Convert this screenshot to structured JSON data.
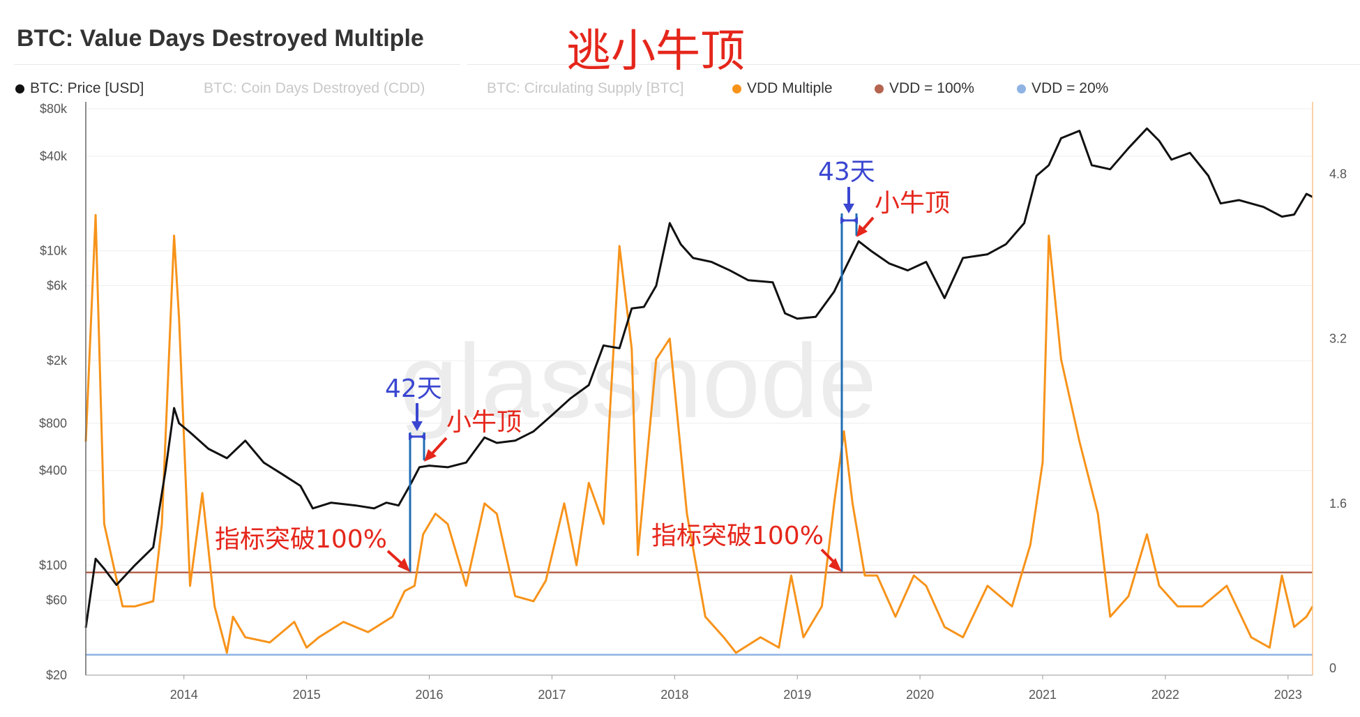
{
  "title": "BTC: Value Days Destroyed Multiple",
  "overlay_title": "逃小牛顶",
  "watermark": "glassnode",
  "legend": [
    {
      "label": "BTC: Price [USD]",
      "color": "#111111",
      "active": true
    },
    {
      "label": "BTC: Coin Days Destroyed (CDD)",
      "color": "#cccccc",
      "active": false
    },
    {
      "label": "BTC: Circulating Supply [BTC]",
      "color": "#cccccc",
      "active": false
    },
    {
      "label": "VDD Multiple",
      "color": "#f7931a",
      "active": true
    },
    {
      "label": "VDD = 100%",
      "color": "#b5644f",
      "active": true
    },
    {
      "label": "VDD = 20%",
      "color": "#8fb3e3",
      "active": true
    }
  ],
  "annotations": {
    "cycle1_days": "42天",
    "cycle1_top": "小牛顶",
    "cycle1_break": "指标突破100%",
    "cycle2_days": "43天",
    "cycle2_top": "小牛顶",
    "cycle2_break": "指标突破100%"
  },
  "chart_data": {
    "type": "line",
    "title": "BTC: Value Days Destroyed Multiple",
    "x_ticks": [
      "2014",
      "2015",
      "2016",
      "2017",
      "2018",
      "2019",
      "2020",
      "2021",
      "2022",
      "2023"
    ],
    "x_range": [
      2013.2,
      2023.2
    ],
    "y_left": {
      "scale": "log",
      "ticks": [
        "$20",
        "$60",
        "$100",
        "$400",
        "$800",
        "$2k",
        "$6k",
        "$10k",
        "$40k",
        "$80k"
      ],
      "tick_values": [
        20,
        60,
        100,
        400,
        800,
        2000,
        6000,
        10000,
        40000,
        80000
      ]
    },
    "y_right": {
      "scale": "linear",
      "ticks": [
        "0",
        "1.6",
        "3.2",
        "4.8"
      ],
      "tick_values": [
        0,
        1.6,
        3.2,
        4.8
      ],
      "range": [
        0,
        5.5
      ]
    },
    "reference_lines": [
      {
        "name": "VDD = 100%",
        "value": 0.93,
        "color": "#b5644f"
      },
      {
        "name": "VDD = 20%",
        "value": 0.13,
        "color": "#8fb3e3"
      }
    ],
    "series": [
      {
        "name": "BTC: Price [USD]",
        "axis": "left",
        "color": "#111111",
        "x": [
          2013.2,
          2013.28,
          2013.35,
          2013.45,
          2013.6,
          2013.75,
          2013.85,
          2013.92,
          2013.96,
          2014.05,
          2014.2,
          2014.35,
          2014.5,
          2014.65,
          2014.8,
          2014.95,
          2015.05,
          2015.2,
          2015.4,
          2015.55,
          2015.65,
          2015.75,
          2015.85,
          2015.92,
          2016.0,
          2016.15,
          2016.3,
          2016.45,
          2016.55,
          2016.7,
          2016.85,
          2017.0,
          2017.15,
          2017.3,
          2017.42,
          2017.55,
          2017.65,
          2017.75,
          2017.85,
          2017.96,
          2018.05,
          2018.15,
          2018.3,
          2018.45,
          2018.6,
          2018.8,
          2018.9,
          2019.0,
          2019.15,
          2019.3,
          2019.4,
          2019.5,
          2019.6,
          2019.75,
          2019.9,
          2020.05,
          2020.2,
          2020.35,
          2020.55,
          2020.7,
          2020.85,
          2020.95,
          2021.05,
          2021.15,
          2021.3,
          2021.4,
          2021.55,
          2021.7,
          2021.85,
          2021.95,
          2022.05,
          2022.2,
          2022.35,
          2022.45,
          2022.6,
          2022.8,
          2022.95,
          2023.05,
          2023.15,
          2023.2
        ],
        "y": [
          40,
          110,
          95,
          75,
          100,
          130,
          400,
          1000,
          800,
          700,
          550,
          480,
          620,
          450,
          380,
          320,
          230,
          250,
          240,
          230,
          250,
          240,
          330,
          420,
          430,
          420,
          450,
          650,
          600,
          620,
          710,
          900,
          1150,
          1400,
          2500,
          2400,
          4300,
          4400,
          6000,
          15000,
          11000,
          9000,
          8500,
          7500,
          6500,
          6300,
          4000,
          3700,
          3800,
          5500,
          8000,
          11500,
          10000,
          8300,
          7500,
          8500,
          5000,
          9000,
          9500,
          11000,
          15000,
          30000,
          35000,
          52000,
          58000,
          35000,
          33000,
          45000,
          60000,
          50000,
          38000,
          42000,
          30000,
          20000,
          21000,
          19000,
          16500,
          17000,
          23000,
          22000
        ]
      },
      {
        "name": "VDD Multiple",
        "axis": "right",
        "color": "#f7931a",
        "x": [
          2013.2,
          2013.28,
          2013.35,
          2013.5,
          2013.6,
          2013.75,
          2013.82,
          2013.92,
          2013.96,
          2014.05,
          2014.15,
          2014.25,
          2014.35,
          2014.4,
          2014.5,
          2014.7,
          2014.9,
          2015.0,
          2015.1,
          2015.3,
          2015.5,
          2015.7,
          2015.8,
          2015.88,
          2015.95,
          2016.05,
          2016.15,
          2016.3,
          2016.45,
          2016.55,
          2016.7,
          2016.85,
          2016.95,
          2017.1,
          2017.2,
          2017.3,
          2017.42,
          2017.55,
          2017.65,
          2017.7,
          2017.85,
          2017.96,
          2018.1,
          2018.25,
          2018.4,
          2018.5,
          2018.7,
          2018.85,
          2018.95,
          2019.05,
          2019.2,
          2019.3,
          2019.38,
          2019.45,
          2019.55,
          2019.65,
          2019.8,
          2019.95,
          2020.05,
          2020.2,
          2020.35,
          2020.55,
          2020.75,
          2020.9,
          2021.0,
          2021.05,
          2021.15,
          2021.3,
          2021.45,
          2021.55,
          2021.7,
          2021.85,
          2021.95,
          2022.1,
          2022.3,
          2022.5,
          2022.7,
          2022.85,
          2022.95,
          2023.05,
          2023.15,
          2023.2
        ],
        "y": [
          2.2,
          4.4,
          1.4,
          0.6,
          0.6,
          0.65,
          1.4,
          4.2,
          3.4,
          0.8,
          1.7,
          0.6,
          0.15,
          0.5,
          0.3,
          0.25,
          0.45,
          0.2,
          0.3,
          0.45,
          0.35,
          0.5,
          0.75,
          0.8,
          1.3,
          1.5,
          1.4,
          0.8,
          1.6,
          1.5,
          0.7,
          0.65,
          0.85,
          1.6,
          1.0,
          1.8,
          1.4,
          4.1,
          3.1,
          1.1,
          3.0,
          3.2,
          1.5,
          0.5,
          0.3,
          0.15,
          0.3,
          0.2,
          0.9,
          0.3,
          0.6,
          1.6,
          2.3,
          1.6,
          0.9,
          0.9,
          0.5,
          0.9,
          0.8,
          0.4,
          0.3,
          0.8,
          0.6,
          1.2,
          2.0,
          4.2,
          3.0,
          2.2,
          1.5,
          0.5,
          0.7,
          1.3,
          0.8,
          0.6,
          0.6,
          0.8,
          0.3,
          0.2,
          0.9,
          0.4,
          0.5,
          0.6
        ]
      }
    ]
  }
}
